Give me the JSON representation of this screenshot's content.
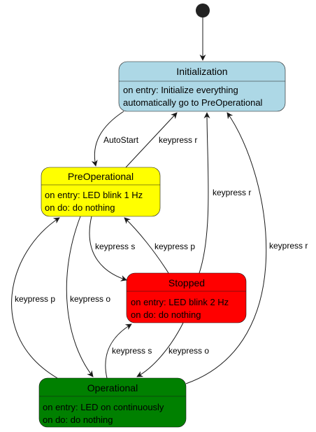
{
  "states": {
    "initialization": {
      "name": "Initialization",
      "detail_1": "on entry: Initialize everything",
      "detail_2": "automatically go to PreOperational",
      "color": "#ADD8E6"
    },
    "preoperational": {
      "name": "PreOperational",
      "detail_1": "on entry: LED blink 1 Hz",
      "detail_2": "on do: do nothing",
      "color": "#FFFF00"
    },
    "stopped": {
      "name": "Stopped",
      "detail_1": "on entry: LED blink 2 Hz",
      "detail_2": "on do: do nothing",
      "color": "#FF0000"
    },
    "operational": {
      "name": "Operational",
      "detail_1": "on entry: LED on continuously",
      "detail_2": "on do: do nothing",
      "color": "#008000"
    }
  },
  "transitions": {
    "init_to_preop": "AutoStart",
    "preop_to_init": "keypress r",
    "stopped_to_init": "keypress r",
    "operational_to_init": "keypress r",
    "preop_to_stopped": "keypress s",
    "stopped_to_preop": "keypress p",
    "operational_to_preop": "keypress p",
    "preop_to_operational": "keypress o",
    "operational_to_stopped": "keypress s",
    "stopped_to_operational": "keypress o"
  }
}
